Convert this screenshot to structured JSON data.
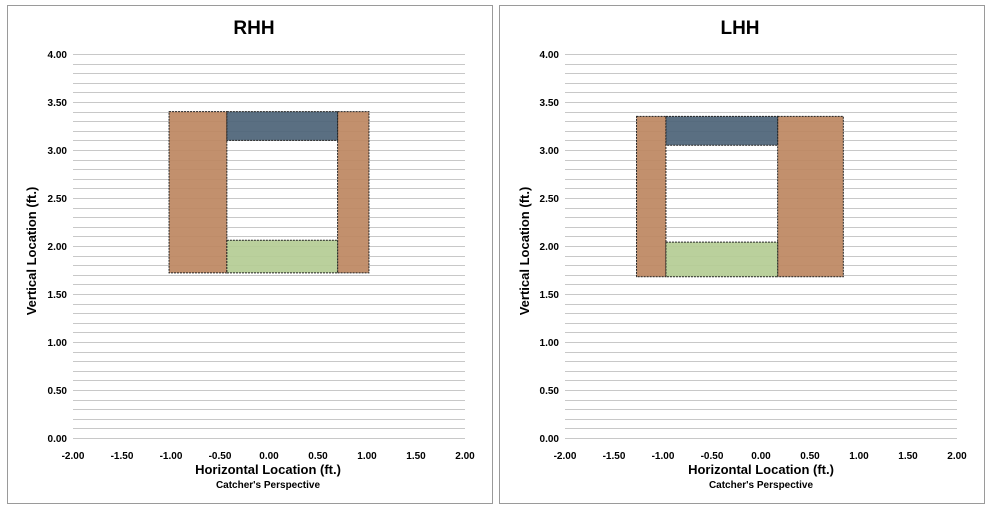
{
  "chart_data": [
    {
      "type": "heatmap",
      "title": "RHH",
      "xlabel": "Horizontal Location (ft.)",
      "subtitle": "Catcher's Perspective",
      "ylabel": "Vertical Location (ft.)",
      "xlim": [
        -2.0,
        2.0
      ],
      "ylim": [
        0.0,
        4.0
      ],
      "x_ticks": [
        "-2.00",
        "-1.50",
        "-1.00",
        "-0.50",
        "0.00",
        "0.50",
        "1.00",
        "1.50",
        "2.00"
      ],
      "y_ticks": [
        "0.00",
        "0.50",
        "1.00",
        "1.50",
        "2.00",
        "2.50",
        "3.00",
        "3.50",
        "4.00"
      ],
      "grid": true,
      "regions": [
        {
          "x": [
            -1.02,
            -0.43
          ],
          "y": [
            1.72,
            3.4
          ],
          "color": "#bd8862"
        },
        {
          "x": [
            0.7,
            1.02
          ],
          "y": [
            1.72,
            3.4
          ],
          "color": "#bd8862"
        },
        {
          "x": [
            -0.43,
            0.7
          ],
          "y": [
            3.1,
            3.4
          ],
          "color": "#4e6478"
        },
        {
          "x": [
            -0.43,
            0.7
          ],
          "y": [
            1.72,
            2.06
          ],
          "color": "#b5cc95"
        }
      ]
    },
    {
      "type": "heatmap",
      "title": "LHH",
      "xlabel": "Horizontal Location (ft.)",
      "subtitle": "Catcher's Perspective",
      "ylabel": "Vertical Location (ft.)",
      "xlim": [
        -2.0,
        2.0
      ],
      "ylim": [
        0.0,
        4.0
      ],
      "x_ticks": [
        "-2.00",
        "-1.50",
        "-1.00",
        "-0.50",
        "0.00",
        "0.50",
        "1.00",
        "1.50",
        "2.00"
      ],
      "y_ticks": [
        "0.00",
        "0.50",
        "1.00",
        "1.50",
        "2.00",
        "2.50",
        "3.00",
        "3.50",
        "4.00"
      ],
      "grid": true,
      "regions": [
        {
          "x": [
            -1.27,
            -0.97
          ],
          "y": [
            1.68,
            3.35
          ],
          "color": "#bd8862"
        },
        {
          "x": [
            0.17,
            0.84
          ],
          "y": [
            1.68,
            3.35
          ],
          "color": "#bd8862"
        },
        {
          "x": [
            -0.97,
            0.17
          ],
          "y": [
            3.05,
            3.35
          ],
          "color": "#4e6478"
        },
        {
          "x": [
            -0.97,
            0.17
          ],
          "y": [
            1.68,
            2.04
          ],
          "color": "#b5cc95"
        }
      ]
    }
  ]
}
